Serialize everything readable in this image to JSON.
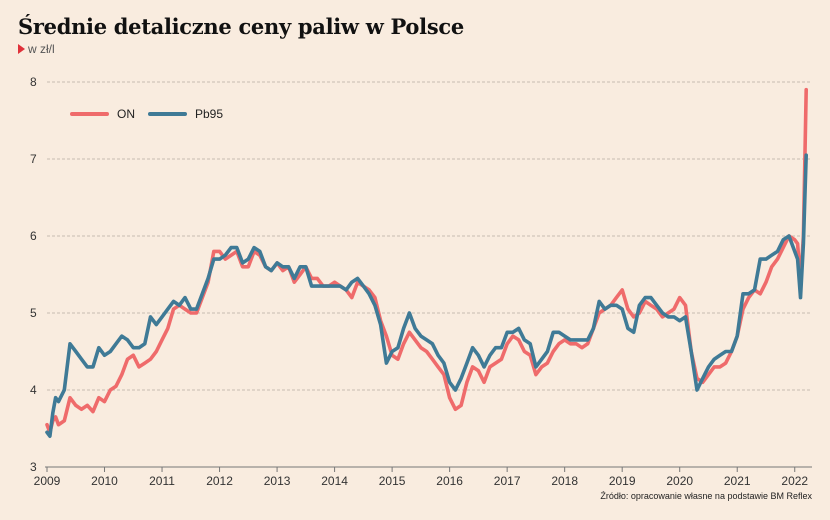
{
  "title": "Średnie detaliczne ceny paliw w Polsce",
  "subtitle": "w zł/l",
  "source": "Źródło: opracowanie własne na podstawie BM Reflex",
  "colors": {
    "background": "#f9ecdf",
    "on": "#ef6b6b",
    "pb95": "#3f7a96",
    "grid": "#b5aca2",
    "accent": "#e0313a"
  },
  "chart_data": {
    "type": "line",
    "title": "Średnie detaliczne ceny paliw w Polsce",
    "ylabel": "w zł/l",
    "xlabel": "",
    "ylim": [
      3,
      8
    ],
    "xlim": [
      2009,
      2022.3
    ],
    "yticks": [
      3,
      4,
      5,
      6,
      7,
      8
    ],
    "xticks": [
      "2009",
      "2010",
      "2011",
      "2012",
      "2013",
      "2014",
      "2015",
      "2016",
      "2017",
      "2018",
      "2019",
      "2020",
      "2021",
      "2022"
    ],
    "grid": "horizontal dashed",
    "legend": "top-left",
    "series": [
      {
        "name": "ON",
        "color": "#ef6b6b",
        "x": [
          2009.0,
          2009.05,
          2009.1,
          2009.15,
          2009.2,
          2009.3,
          2009.4,
          2009.5,
          2009.6,
          2009.7,
          2009.8,
          2009.9,
          2010.0,
          2010.1,
          2010.2,
          2010.3,
          2010.4,
          2010.5,
          2010.6,
          2010.7,
          2010.8,
          2010.9,
          2011.0,
          2011.1,
          2011.2,
          2011.3,
          2011.4,
          2011.5,
          2011.6,
          2011.7,
          2011.8,
          2011.9,
          2012.0,
          2012.1,
          2012.2,
          2012.3,
          2012.4,
          2012.5,
          2012.6,
          2012.7,
          2012.8,
          2012.9,
          2013.0,
          2013.1,
          2013.2,
          2013.3,
          2013.4,
          2013.5,
          2013.6,
          2013.7,
          2013.8,
          2013.9,
          2014.0,
          2014.1,
          2014.2,
          2014.3,
          2014.4,
          2014.5,
          2014.6,
          2014.7,
          2014.8,
          2014.9,
          2015.0,
          2015.1,
          2015.2,
          2015.3,
          2015.4,
          2015.5,
          2015.6,
          2015.7,
          2015.8,
          2015.9,
          2016.0,
          2016.1,
          2016.2,
          2016.3,
          2016.4,
          2016.5,
          2016.6,
          2016.7,
          2016.8,
          2016.9,
          2017.0,
          2017.1,
          2017.2,
          2017.3,
          2017.4,
          2017.5,
          2017.6,
          2017.7,
          2017.8,
          2017.9,
          2018.0,
          2018.1,
          2018.2,
          2018.3,
          2018.4,
          2018.5,
          2018.6,
          2018.7,
          2018.8,
          2018.9,
          2019.0,
          2019.1,
          2019.2,
          2019.3,
          2019.4,
          2019.5,
          2019.6,
          2019.7,
          2019.8,
          2019.9,
          2020.0,
          2020.1,
          2020.2,
          2020.3,
          2020.4,
          2020.5,
          2020.6,
          2020.7,
          2020.8,
          2020.9,
          2021.0,
          2021.1,
          2021.2,
          2021.3,
          2021.4,
          2021.5,
          2021.6,
          2021.7,
          2021.8,
          2021.9,
          2022.0,
          2022.05,
          2022.1,
          2022.15,
          2022.2
        ],
        "values": [
          3.55,
          3.45,
          3.6,
          3.65,
          3.55,
          3.6,
          3.9,
          3.8,
          3.75,
          3.8,
          3.72,
          3.9,
          3.85,
          4.0,
          4.05,
          4.2,
          4.4,
          4.45,
          4.3,
          4.35,
          4.4,
          4.5,
          4.65,
          4.8,
          5.05,
          5.1,
          5.05,
          5.0,
          5.0,
          5.2,
          5.4,
          5.8,
          5.8,
          5.7,
          5.75,
          5.8,
          5.6,
          5.6,
          5.8,
          5.75,
          5.6,
          5.55,
          5.65,
          5.55,
          5.6,
          5.4,
          5.5,
          5.6,
          5.45,
          5.45,
          5.35,
          5.35,
          5.4,
          5.35,
          5.3,
          5.2,
          5.4,
          5.35,
          5.3,
          5.2,
          4.9,
          4.7,
          4.45,
          4.4,
          4.6,
          4.75,
          4.65,
          4.55,
          4.5,
          4.4,
          4.3,
          4.2,
          3.9,
          3.75,
          3.8,
          4.1,
          4.3,
          4.25,
          4.1,
          4.3,
          4.35,
          4.4,
          4.6,
          4.7,
          4.65,
          4.5,
          4.45,
          4.2,
          4.3,
          4.35,
          4.5,
          4.6,
          4.65,
          4.6,
          4.6,
          4.55,
          4.6,
          4.8,
          5.0,
          5.05,
          5.1,
          5.2,
          5.3,
          5.05,
          4.95,
          5.0,
          5.15,
          5.1,
          5.05,
          4.95,
          5.0,
          5.05,
          5.2,
          5.1,
          4.5,
          4.15,
          4.1,
          4.2,
          4.3,
          4.3,
          4.35,
          4.5,
          4.7,
          5.05,
          5.2,
          5.3,
          5.25,
          5.4,
          5.6,
          5.7,
          5.85,
          6.0,
          5.95,
          5.9,
          5.4,
          6.0,
          7.9
        ],
        "label": "ON"
      },
      {
        "name": "Pb95",
        "color": "#3f7a96",
        "x": [
          2009.0,
          2009.05,
          2009.1,
          2009.15,
          2009.2,
          2009.3,
          2009.4,
          2009.5,
          2009.6,
          2009.7,
          2009.8,
          2009.9,
          2010.0,
          2010.1,
          2010.2,
          2010.3,
          2010.4,
          2010.5,
          2010.6,
          2010.7,
          2010.8,
          2010.9,
          2011.0,
          2011.1,
          2011.2,
          2011.3,
          2011.4,
          2011.5,
          2011.6,
          2011.7,
          2011.8,
          2011.9,
          2012.0,
          2012.1,
          2012.2,
          2012.3,
          2012.4,
          2012.5,
          2012.6,
          2012.7,
          2012.8,
          2012.9,
          2013.0,
          2013.1,
          2013.2,
          2013.3,
          2013.4,
          2013.5,
          2013.6,
          2013.7,
          2013.8,
          2013.9,
          2014.0,
          2014.1,
          2014.2,
          2014.3,
          2014.4,
          2014.5,
          2014.6,
          2014.7,
          2014.8,
          2014.9,
          2015.0,
          2015.1,
          2015.2,
          2015.3,
          2015.4,
          2015.5,
          2015.6,
          2015.7,
          2015.8,
          2015.9,
          2016.0,
          2016.1,
          2016.2,
          2016.3,
          2016.4,
          2016.5,
          2016.6,
          2016.7,
          2016.8,
          2016.9,
          2017.0,
          2017.1,
          2017.2,
          2017.3,
          2017.4,
          2017.5,
          2017.6,
          2017.7,
          2017.8,
          2017.9,
          2018.0,
          2018.1,
          2018.2,
          2018.3,
          2018.4,
          2018.5,
          2018.6,
          2018.7,
          2018.8,
          2018.9,
          2019.0,
          2019.1,
          2019.2,
          2019.3,
          2019.4,
          2019.5,
          2019.6,
          2019.7,
          2019.8,
          2019.9,
          2020.0,
          2020.1,
          2020.2,
          2020.3,
          2020.4,
          2020.5,
          2020.6,
          2020.7,
          2020.8,
          2020.9,
          2021.0,
          2021.1,
          2021.2,
          2021.3,
          2021.4,
          2021.5,
          2021.6,
          2021.7,
          2021.8,
          2021.9,
          2022.0,
          2022.05,
          2022.1,
          2022.15,
          2022.2
        ],
        "values": [
          3.45,
          3.4,
          3.7,
          3.9,
          3.85,
          4.0,
          4.6,
          4.5,
          4.4,
          4.3,
          4.3,
          4.55,
          4.45,
          4.5,
          4.6,
          4.7,
          4.65,
          4.55,
          4.55,
          4.6,
          4.95,
          4.85,
          4.95,
          5.05,
          5.15,
          5.1,
          5.2,
          5.05,
          5.05,
          5.25,
          5.45,
          5.7,
          5.7,
          5.75,
          5.85,
          5.85,
          5.65,
          5.7,
          5.85,
          5.8,
          5.6,
          5.55,
          5.65,
          5.6,
          5.6,
          5.45,
          5.6,
          5.6,
          5.35,
          5.35,
          5.35,
          5.35,
          5.35,
          5.35,
          5.3,
          5.4,
          5.45,
          5.35,
          5.25,
          5.1,
          4.85,
          4.35,
          4.5,
          4.55,
          4.8,
          5.0,
          4.8,
          4.7,
          4.65,
          4.6,
          4.45,
          4.35,
          4.1,
          4.0,
          4.15,
          4.35,
          4.55,
          4.45,
          4.3,
          4.45,
          4.55,
          4.55,
          4.75,
          4.75,
          4.8,
          4.65,
          4.6,
          4.3,
          4.4,
          4.5,
          4.75,
          4.75,
          4.7,
          4.65,
          4.65,
          4.65,
          4.65,
          4.8,
          5.15,
          5.05,
          5.1,
          5.1,
          5.05,
          4.8,
          4.75,
          5.1,
          5.2,
          5.2,
          5.1,
          5.0,
          4.95,
          4.95,
          4.9,
          4.95,
          4.5,
          4.0,
          4.15,
          4.3,
          4.4,
          4.45,
          4.5,
          4.5,
          4.7,
          5.25,
          5.25,
          5.3,
          5.7,
          5.7,
          5.75,
          5.8,
          5.95,
          6.0,
          5.8,
          5.7,
          5.2,
          5.9,
          7.05
        ],
        "label": "Pb95"
      }
    ]
  }
}
